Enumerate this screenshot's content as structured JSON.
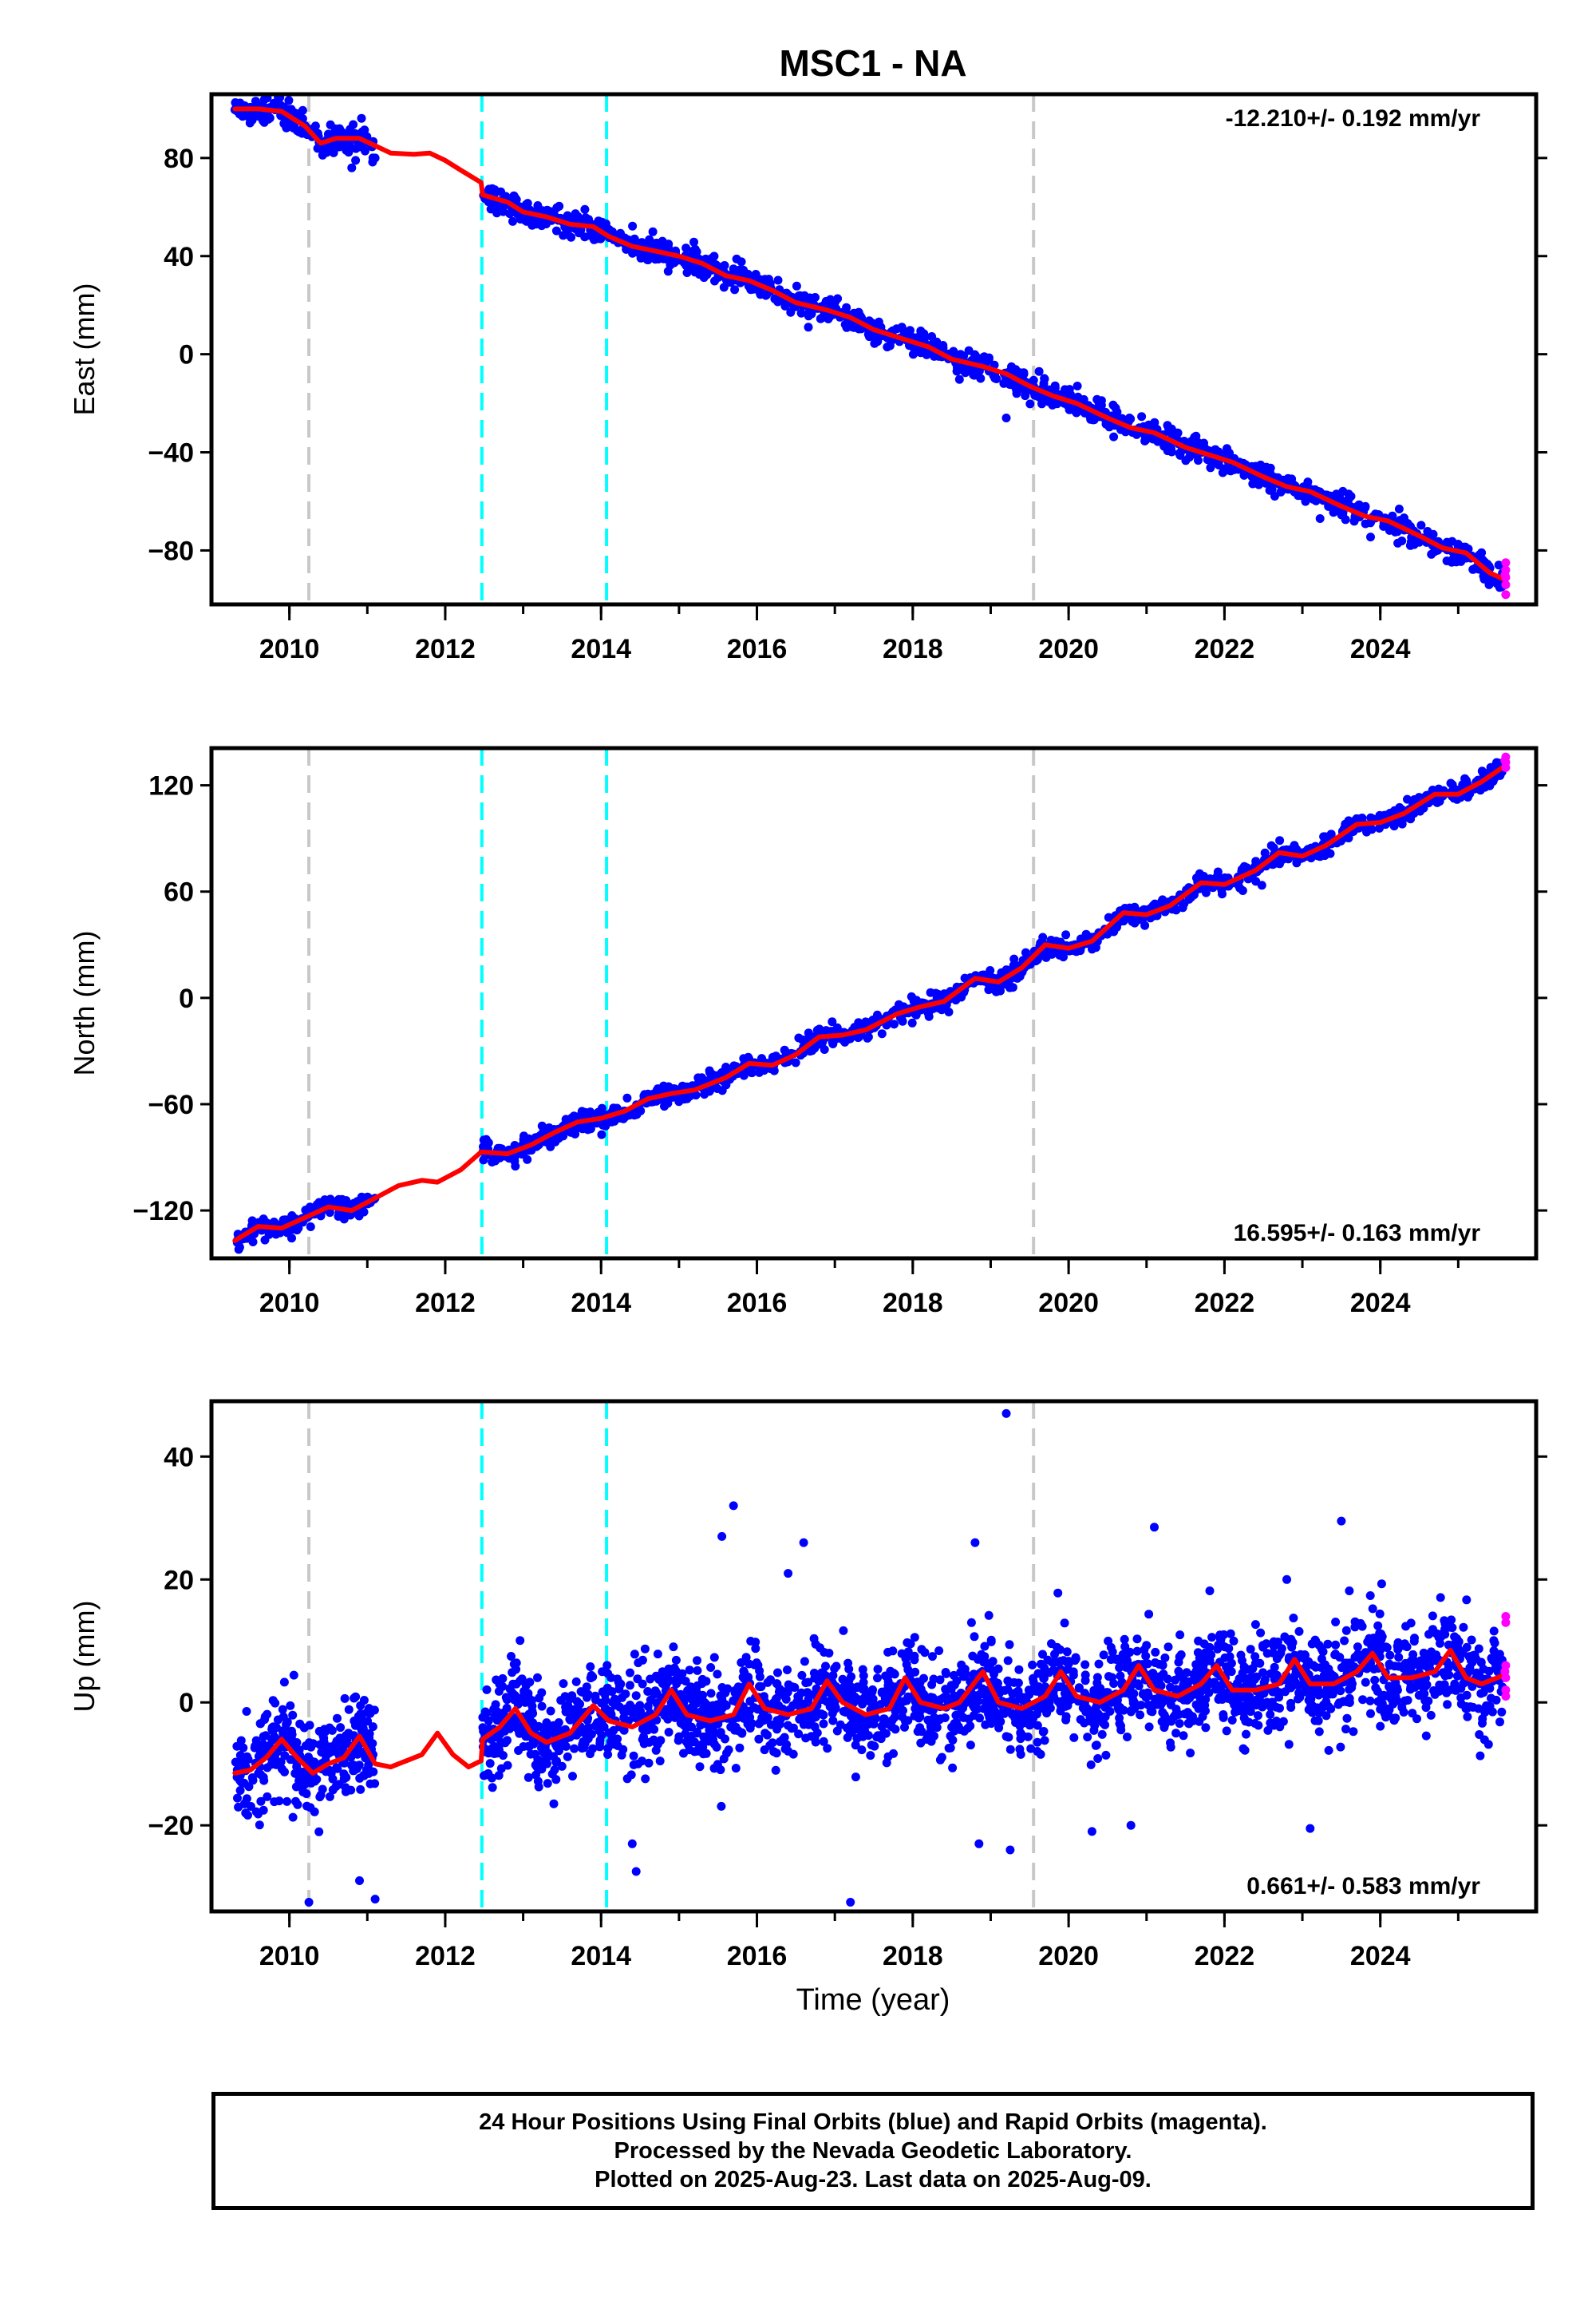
{
  "title": "MSC1 - NA",
  "xlabel": "Time (year)",
  "footer": {
    "line1": "24 Hour Positions Using Final Orbits (blue) and Rapid Orbits (magenta).",
    "line2": "Processed by the Nevada Geodetic Laboratory.",
    "line3": "Plotted on 2025-Aug-23. Last data on 2025-Aug-09."
  },
  "colors": {
    "final_points": "#0000ff",
    "rapid_points": "#ff00ff",
    "model_line": "#ff0000",
    "antenna_change_line": "#00ffff",
    "equipment_change_line": "#c8c8c8"
  },
  "chart_data": [
    {
      "type": "scatter",
      "ylabel": "East (mm)",
      "rate_label": "-12.210+/- 0.192 mm/yr",
      "rate_placement": "top-right",
      "xlim": [
        2009.0,
        2026.0
      ],
      "ylim": [
        -102,
        106
      ],
      "xticks": [
        2010,
        2012,
        2014,
        2016,
        2018,
        2020,
        2022,
        2024
      ],
      "xtick_labels": [
        "2010",
        "2012",
        "2014",
        "2016",
        "2018",
        "2020",
        "2022",
        "2024"
      ],
      "yticks": [
        -80,
        -40,
        0,
        40,
        80
      ],
      "ytick_labels": [
        "−80",
        "−40",
        "0",
        "40",
        "80"
      ],
      "vlines": [
        {
          "x": 2010.25,
          "kind": "equipment"
        },
        {
          "x": 2012.47,
          "kind": "antenna"
        },
        {
          "x": 2014.07,
          "kind": "antenna"
        },
        {
          "x": 2019.55,
          "kind": "equipment"
        }
      ],
      "model_line": [
        [
          2009.3,
          100
        ],
        [
          2009.6,
          100
        ],
        [
          2009.9,
          99
        ],
        [
          2010.2,
          93
        ],
        [
          2010.4,
          86
        ],
        [
          2010.6,
          88
        ],
        [
          2010.9,
          88
        ],
        [
          2011.1,
          85
        ],
        [
          2011.3,
          82
        ],
        [
          2011.6,
          81.5
        ],
        [
          2011.8,
          82
        ],
        [
          2012.0,
          79
        ],
        [
          2012.2,
          75
        ],
        [
          2012.46,
          70
        ],
        [
          2012.48,
          65
        ],
        [
          2012.8,
          62
        ],
        [
          2013.0,
          58
        ],
        [
          2013.3,
          56
        ],
        [
          2013.6,
          53
        ],
        [
          2013.9,
          52
        ],
        [
          2014.1,
          48
        ],
        [
          2014.4,
          44
        ],
        [
          2014.7,
          42
        ],
        [
          2015.0,
          40
        ],
        [
          2015.3,
          37
        ],
        [
          2015.6,
          32
        ],
        [
          2015.9,
          30
        ],
        [
          2016.2,
          26
        ],
        [
          2016.5,
          21
        ],
        [
          2016.9,
          18
        ],
        [
          2017.2,
          15
        ],
        [
          2017.5,
          10
        ],
        [
          2017.9,
          6
        ],
        [
          2018.2,
          3
        ],
        [
          2018.5,
          -2
        ],
        [
          2018.9,
          -5
        ],
        [
          2019.2,
          -8
        ],
        [
          2019.5,
          -13
        ],
        [
          2019.8,
          -17
        ],
        [
          2020.1,
          -20
        ],
        [
          2020.5,
          -26
        ],
        [
          2020.8,
          -30
        ],
        [
          2021.1,
          -32
        ],
        [
          2021.5,
          -38
        ],
        [
          2021.8,
          -41
        ],
        [
          2022.1,
          -44
        ],
        [
          2022.5,
          -50
        ],
        [
          2022.8,
          -54
        ],
        [
          2023.1,
          -56
        ],
        [
          2023.5,
          -62
        ],
        [
          2023.8,
          -66
        ],
        [
          2024.1,
          -68
        ],
        [
          2024.5,
          -74
        ],
        [
          2024.8,
          -79
        ],
        [
          2025.1,
          -81
        ],
        [
          2025.4,
          -89
        ],
        [
          2025.6,
          -92
        ]
      ],
      "point_segments": [
        [
          2009.3,
          2011.1
        ],
        [
          2012.48,
          2025.58
        ]
      ],
      "point_spread": 2.6,
      "point_count": 1450,
      "rapid_points": [
        [
          2025.61,
          -85
        ],
        [
          2025.61,
          -88
        ],
        [
          2025.61,
          -91
        ],
        [
          2025.61,
          -94
        ],
        [
          2025.61,
          -98
        ],
        [
          2025.6,
          -90
        ]
      ],
      "outliers": [
        [
          2010.8,
          76
        ],
        [
          2010.85,
          79
        ],
        [
          2011.1,
          80
        ],
        [
          2019.2,
          -26
        ]
      ]
    },
    {
      "type": "scatter",
      "ylabel": "North (mm)",
      "rate_label": "16.595+/- 0.163 mm/yr",
      "rate_placement": "bottom-right",
      "xlim": [
        2009.0,
        2026.0
      ],
      "ylim": [
        -147,
        141
      ],
      "xticks": [
        2010,
        2012,
        2014,
        2016,
        2018,
        2020,
        2022,
        2024
      ],
      "xtick_labels": [
        "2010",
        "2012",
        "2014",
        "2016",
        "2018",
        "2020",
        "2022",
        "2024"
      ],
      "yticks": [
        -120,
        -60,
        0,
        60,
        120
      ],
      "ytick_labels": [
        "−120",
        "−60",
        "0",
        "60",
        "120"
      ],
      "vlines": [
        {
          "x": 2010.25,
          "kind": "equipment"
        },
        {
          "x": 2012.47,
          "kind": "antenna"
        },
        {
          "x": 2014.07,
          "kind": "antenna"
        },
        {
          "x": 2019.55,
          "kind": "equipment"
        }
      ],
      "model_line": [
        [
          2009.3,
          -137
        ],
        [
          2009.6,
          -129
        ],
        [
          2009.9,
          -130
        ],
        [
          2010.2,
          -124
        ],
        [
          2010.5,
          -118
        ],
        [
          2010.8,
          -120
        ],
        [
          2011.1,
          -113
        ],
        [
          2011.4,
          -106
        ],
        [
          2011.7,
          -103
        ],
        [
          2011.9,
          -104
        ],
        [
          2012.2,
          -97
        ],
        [
          2012.46,
          -87
        ],
        [
          2012.48,
          -87
        ],
        [
          2012.8,
          -88
        ],
        [
          2013.1,
          -83
        ],
        [
          2013.4,
          -76
        ],
        [
          2013.7,
          -70
        ],
        [
          2014.0,
          -68
        ],
        [
          2014.3,
          -64
        ],
        [
          2014.6,
          -57
        ],
        [
          2014.9,
          -54
        ],
        [
          2015.2,
          -52
        ],
        [
          2015.6,
          -45
        ],
        [
          2015.9,
          -37
        ],
        [
          2016.2,
          -38
        ],
        [
          2016.5,
          -32
        ],
        [
          2016.8,
          -22
        ],
        [
          2017.1,
          -21
        ],
        [
          2017.4,
          -18
        ],
        [
          2017.8,
          -9
        ],
        [
          2018.1,
          -5
        ],
        [
          2018.4,
          -2
        ],
        [
          2018.8,
          11
        ],
        [
          2019.1,
          9
        ],
        [
          2019.4,
          17
        ],
        [
          2019.7,
          30
        ],
        [
          2020.0,
          28
        ],
        [
          2020.3,
          32
        ],
        [
          2020.7,
          48
        ],
        [
          2021.0,
          47
        ],
        [
          2021.3,
          52
        ],
        [
          2021.7,
          65
        ],
        [
          2022.0,
          64
        ],
        [
          2022.4,
          72
        ],
        [
          2022.7,
          82
        ],
        [
          2023.0,
          80
        ],
        [
          2023.3,
          86
        ],
        [
          2023.7,
          98
        ],
        [
          2024.0,
          99
        ],
        [
          2024.3,
          104
        ],
        [
          2024.7,
          115
        ],
        [
          2025.0,
          115
        ],
        [
          2025.3,
          122
        ],
        [
          2025.6,
          131
        ]
      ],
      "point_segments": [
        [
          2009.3,
          2011.1
        ],
        [
          2012.48,
          2025.58
        ]
      ],
      "point_spread": 2.8,
      "point_count": 1450,
      "rapid_points": [
        [
          2025.61,
          130
        ],
        [
          2025.61,
          133
        ],
        [
          2025.61,
          136
        ],
        [
          2025.6,
          134
        ]
      ],
      "outliers": [
        [
          2009.35,
          -142
        ],
        [
          2012.9,
          -95
        ]
      ]
    },
    {
      "type": "scatter",
      "ylabel": "Up (mm)",
      "rate_label": "0.661+/- 0.583 mm/yr",
      "rate_placement": "bottom-right",
      "xlim": [
        2009.0,
        2026.0
      ],
      "ylim": [
        -34,
        49
      ],
      "xticks": [
        2010,
        2012,
        2014,
        2016,
        2018,
        2020,
        2022,
        2024
      ],
      "xtick_labels": [
        "2010",
        "2012",
        "2014",
        "2016",
        "2018",
        "2020",
        "2022",
        "2024"
      ],
      "yticks": [
        -20,
        0,
        20,
        40
      ],
      "ytick_labels": [
        "−20",
        "0",
        "20",
        "40"
      ],
      "vlines": [
        {
          "x": 2010.25,
          "kind": "equipment"
        },
        {
          "x": 2012.47,
          "kind": "antenna"
        },
        {
          "x": 2014.07,
          "kind": "antenna"
        },
        {
          "x": 2019.55,
          "kind": "equipment"
        }
      ],
      "model_line": [
        [
          2009.3,
          -11.5
        ],
        [
          2009.5,
          -11
        ],
        [
          2009.7,
          -9
        ],
        [
          2009.9,
          -6
        ],
        [
          2010.1,
          -9
        ],
        [
          2010.3,
          -11.5
        ],
        [
          2010.5,
          -10
        ],
        [
          2010.7,
          -9
        ],
        [
          2010.9,
          -5.5
        ],
        [
          2011.1,
          -10
        ],
        [
          2011.3,
          -10.5
        ],
        [
          2011.5,
          -9.5
        ],
        [
          2011.7,
          -8.5
        ],
        [
          2011.9,
          -5
        ],
        [
          2012.1,
          -8.5
        ],
        [
          2012.3,
          -10.5
        ],
        [
          2012.46,
          -9.5
        ],
        [
          2012.48,
          -6
        ],
        [
          2012.7,
          -4
        ],
        [
          2012.9,
          -1
        ],
        [
          2013.1,
          -5
        ],
        [
          2013.3,
          -6.5
        ],
        [
          2013.6,
          -5
        ],
        [
          2013.9,
          -0.5
        ],
        [
          2014.1,
          -3
        ],
        [
          2014.4,
          -4
        ],
        [
          2014.7,
          -2
        ],
        [
          2014.9,
          2
        ],
        [
          2015.1,
          -2
        ],
        [
          2015.4,
          -3
        ],
        [
          2015.7,
          -2
        ],
        [
          2015.9,
          3
        ],
        [
          2016.1,
          -1
        ],
        [
          2016.4,
          -2
        ],
        [
          2016.7,
          -1
        ],
        [
          2016.9,
          3.5
        ],
        [
          2017.1,
          0
        ],
        [
          2017.4,
          -2
        ],
        [
          2017.7,
          -1
        ],
        [
          2017.9,
          4
        ],
        [
          2018.1,
          0
        ],
        [
          2018.4,
          -1
        ],
        [
          2018.6,
          0
        ],
        [
          2018.9,
          5
        ],
        [
          2019.1,
          0
        ],
        [
          2019.4,
          -1
        ],
        [
          2019.7,
          1
        ],
        [
          2019.9,
          5
        ],
        [
          2020.1,
          1
        ],
        [
          2020.4,
          0
        ],
        [
          2020.7,
          2
        ],
        [
          2020.9,
          6
        ],
        [
          2021.1,
          2
        ],
        [
          2021.4,
          1
        ],
        [
          2021.7,
          3
        ],
        [
          2021.9,
          6
        ],
        [
          2022.1,
          2
        ],
        [
          2022.4,
          2
        ],
        [
          2022.7,
          3
        ],
        [
          2022.9,
          7
        ],
        [
          2023.1,
          3
        ],
        [
          2023.4,
          3
        ],
        [
          2023.7,
          5
        ],
        [
          2023.9,
          8
        ],
        [
          2024.1,
          4
        ],
        [
          2024.4,
          4
        ],
        [
          2024.7,
          5
        ],
        [
          2024.9,
          8.5
        ],
        [
          2025.1,
          4
        ],
        [
          2025.3,
          3
        ],
        [
          2025.6,
          4.5
        ]
      ],
      "point_segments": [
        [
          2009.3,
          2011.1
        ],
        [
          2012.48,
          2025.58
        ]
      ],
      "point_spread": 4.0,
      "point_count": 2600,
      "rapid_points": [
        [
          2025.61,
          14
        ],
        [
          2025.61,
          13
        ],
        [
          2025.61,
          6
        ],
        [
          2025.61,
          4
        ],
        [
          2025.61,
          2
        ],
        [
          2025.61,
          1
        ],
        [
          2025.6,
          5
        ]
      ],
      "outliers": [
        [
          2010.25,
          -32.5
        ],
        [
          2010.9,
          -29
        ],
        [
          2011.1,
          -32
        ],
        [
          2014.4,
          -23
        ],
        [
          2014.45,
          -27.5
        ],
        [
          2015.55,
          27
        ],
        [
          2015.7,
          32
        ],
        [
          2016.6,
          26
        ],
        [
          2016.4,
          21
        ],
        [
          2017.2,
          -32.5
        ],
        [
          2018.8,
          26
        ],
        [
          2018.85,
          -23
        ],
        [
          2019.2,
          47
        ],
        [
          2019.25,
          -24
        ],
        [
          2020.3,
          -21
        ],
        [
          2021.1,
          28.5
        ],
        [
          2022.8,
          20
        ],
        [
          2023.1,
          -20.5
        ],
        [
          2023.5,
          29.5
        ],
        [
          2020.8,
          -20
        ]
      ]
    }
  ]
}
